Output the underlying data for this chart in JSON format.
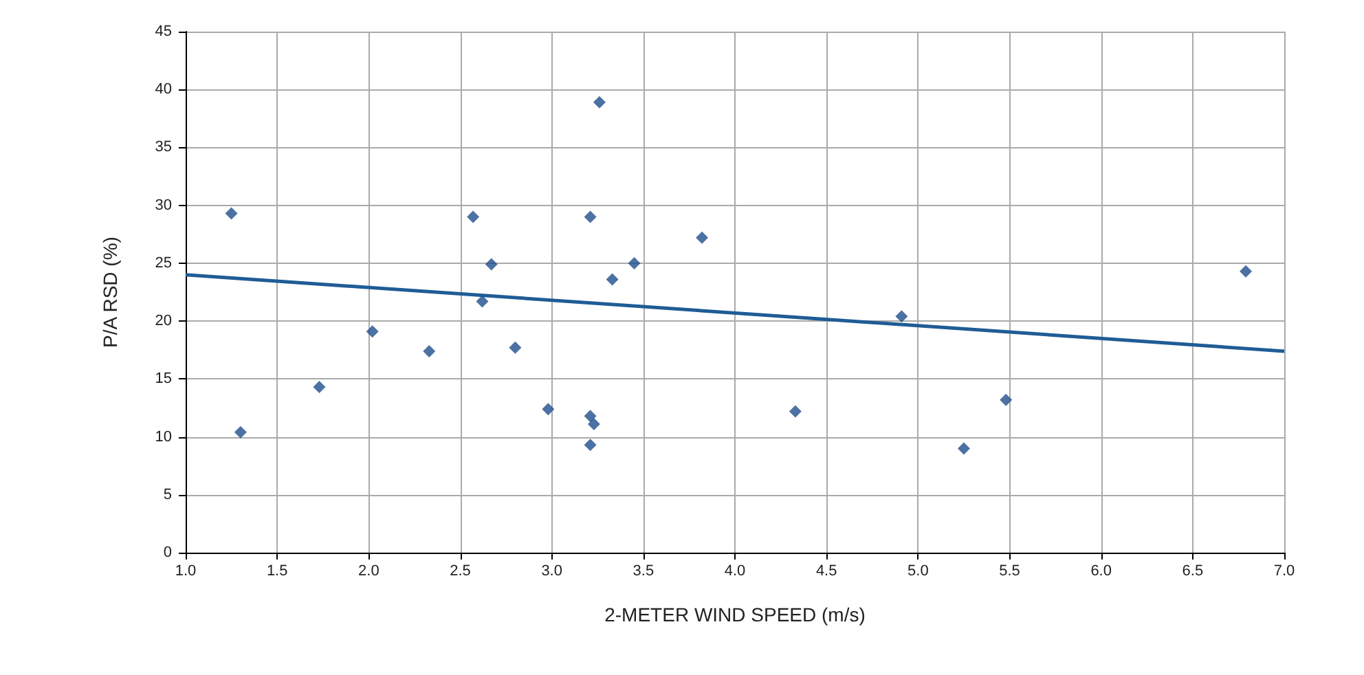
{
  "chart_data": {
    "type": "scatter",
    "xlabel": "2-METER WIND SPEED (m/s)",
    "ylabel": "P/A RSD (%)",
    "series": [
      {
        "marker": "diamond",
        "color": "#1f4e8c",
        "x": [
          1.25,
          1.3,
          1.73,
          2.02,
          2.33,
          2.57,
          2.62,
          2.67,
          2.8,
          2.98,
          3.21,
          3.23,
          3.21,
          3.21,
          3.26,
          3.33,
          3.45,
          3.82,
          4.33,
          4.91,
          5.25,
          5.48,
          6.79
        ],
        "values": [
          29.3,
          10.4,
          14.3,
          19.1,
          17.4,
          29.0,
          21.7,
          24.9,
          17.7,
          12.4,
          11.8,
          11.1,
          9.3,
          29.0,
          38.9,
          23.6,
          25.0,
          27.2,
          12.2,
          20.4,
          9.0,
          13.2,
          24.3
        ]
      },
      {
        "type": "line",
        "marker": "none",
        "color": "#1f5c96",
        "x": [
          1.0,
          7.0
        ],
        "values": [
          24.0,
          17.4
        ]
      }
    ],
    "grid": true,
    "xlim": [
      1,
      7
    ],
    "xticks": [
      {
        "value": 1,
        "label": "1.0"
      },
      {
        "value": 1.5,
        "label": "1.5"
      },
      {
        "value": 2,
        "label": "2.0"
      },
      {
        "value": 2.5,
        "label": "2.5"
      },
      {
        "value": 3,
        "label": "3.0"
      },
      {
        "value": 3.5,
        "label": "3.5"
      },
      {
        "value": 4,
        "label": "4.0"
      },
      {
        "value": 4.5,
        "label": "4.5"
      },
      {
        "value": 5,
        "label": "5.0"
      },
      {
        "value": 5.5,
        "label": "5.5"
      },
      {
        "value": 6,
        "label": "6.0"
      },
      {
        "value": 6.5,
        "label": "6.5"
      },
      {
        "value": 7,
        "label": "7.0"
      }
    ],
    "ylim": [
      0,
      45
    ],
    "yticks": [
      0,
      5,
      10,
      15,
      20,
      25,
      30,
      35,
      40,
      45
    ]
  }
}
